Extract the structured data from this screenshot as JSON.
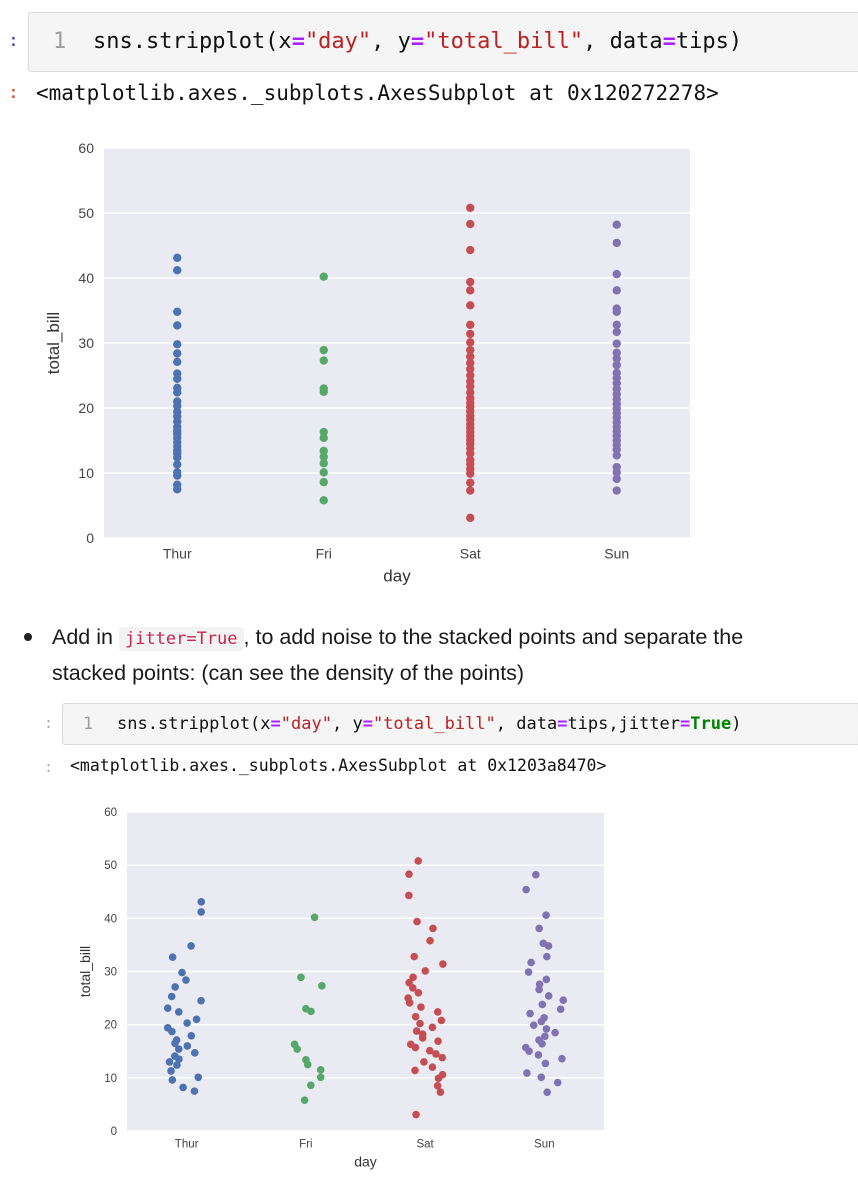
{
  "cell1": {
    "line_number": "1",
    "code": {
      "fn": "sns.stripplot(x",
      "eq1": "=",
      "s1": "\"day\"",
      "mid1": ", y",
      "eq2": "=",
      "s2": "\"total_bill\"",
      "mid2": ", data",
      "eq3": "=",
      "tail": "tips)"
    },
    "output": "<matplotlib.axes._subplots.AxesSubplot at 0x120272278>"
  },
  "cell2": {
    "line_number": "1",
    "code": {
      "fn": "sns.stripplot(x",
      "eq1": "=",
      "s1": "\"day\"",
      "mid1": ", y",
      "eq2": "=",
      "s2": "\"total_bill\"",
      "mid2": ", data",
      "eq3": "=",
      "mid3": "tips,jitter",
      "eq4": "=",
      "kw": "True",
      "tail": ")"
    },
    "output": "<matplotlib.axes._subplots.AxesSubplot at 0x1203a8470>"
  },
  "bullet": {
    "prefix": "Add in ",
    "code": "jitter=True",
    "line1_rest": ", to add noise to the stacked points and separate the",
    "line2": "stacked points: (can see the density of the points)"
  },
  "chart_data": [
    {
      "type": "scatter",
      "title": "",
      "xlabel": "day",
      "ylabel": "total_bill",
      "categories": [
        "Thur",
        "Fri",
        "Sat",
        "Sun"
      ],
      "ylim": [
        0,
        60
      ],
      "yticks": [
        0,
        10,
        20,
        30,
        40,
        50,
        60
      ],
      "grid": true,
      "jitter": false,
      "colors": [
        "#4c72b0",
        "#55a868",
        "#c44e52",
        "#8172b2"
      ],
      "series": [
        {
          "values": [
            7.5,
            8.2,
            9.6,
            10.1,
            11.3,
            12.4,
            13.0,
            13.5,
            14.1,
            14.7,
            15.4,
            16.0,
            16.5,
            17.1,
            17.9,
            18.7,
            19.4,
            20.3,
            21.0,
            22.4,
            23.1,
            24.5,
            25.3,
            27.1,
            28.4,
            29.8,
            32.7,
            34.8,
            41.2,
            43.1
          ]
        },
        {
          "values": [
            5.8,
            8.6,
            10.1,
            11.5,
            12.5,
            13.4,
            15.4,
            16.3,
            22.5,
            23.0,
            27.3,
            28.9,
            40.2
          ]
        },
        {
          "values": [
            3.1,
            7.3,
            8.5,
            9.9,
            10.6,
            11.4,
            12.0,
            13.0,
            13.8,
            14.5,
            15.1,
            15.7,
            16.3,
            16.9,
            17.5,
            18.2,
            18.8,
            19.5,
            20.2,
            20.8,
            21.5,
            22.4,
            23.3,
            24.1,
            25.0,
            26.0,
            26.9,
            27.9,
            28.9,
            30.1,
            31.4,
            32.8,
            35.8,
            38.1,
            39.4,
            44.3,
            48.3,
            50.8
          ]
        },
        {
          "values": [
            7.3,
            9.1,
            10.1,
            10.9,
            12.7,
            13.6,
            14.3,
            15.0,
            15.7,
            16.4,
            17.1,
            17.8,
            18.5,
            19.2,
            19.9,
            20.6,
            21.3,
            22.1,
            22.9,
            23.8,
            24.6,
            25.4,
            26.6,
            27.6,
            28.5,
            29.9,
            31.7,
            32.8,
            34.8,
            35.3,
            38.1,
            40.6,
            45.4,
            48.2
          ]
        }
      ]
    },
    {
      "type": "scatter",
      "title": "",
      "xlabel": "day",
      "ylabel": "total_bill",
      "categories": [
        "Thur",
        "Fri",
        "Sat",
        "Sun"
      ],
      "ylim": [
        0,
        60
      ],
      "yticks": [
        0,
        10,
        20,
        30,
        40,
        50,
        60
      ],
      "grid": true,
      "jitter": true,
      "colors": [
        "#4c72b0",
        "#55a868",
        "#c44e52",
        "#8172b2"
      ],
      "series": [
        {
          "values": [
            7.5,
            8.2,
            9.6,
            10.1,
            11.3,
            12.4,
            13.0,
            13.5,
            14.1,
            14.7,
            15.4,
            16.0,
            16.5,
            17.1,
            17.9,
            18.7,
            19.4,
            20.3,
            21.0,
            22.4,
            23.1,
            24.5,
            25.3,
            27.1,
            28.4,
            29.8,
            32.7,
            34.8,
            41.2,
            43.1
          ]
        },
        {
          "values": [
            5.8,
            8.6,
            10.1,
            11.5,
            12.5,
            13.4,
            15.4,
            16.3,
            22.5,
            23.0,
            27.3,
            28.9,
            40.2
          ]
        },
        {
          "values": [
            3.1,
            7.3,
            8.5,
            9.9,
            10.6,
            11.4,
            12.0,
            13.0,
            13.8,
            14.5,
            15.1,
            15.7,
            16.3,
            16.9,
            17.5,
            18.2,
            18.8,
            19.5,
            20.2,
            20.8,
            21.5,
            22.4,
            23.3,
            24.1,
            25.0,
            26.0,
            26.9,
            27.9,
            28.9,
            30.1,
            31.4,
            32.8,
            35.8,
            38.1,
            39.4,
            44.3,
            48.3,
            50.8
          ]
        },
        {
          "values": [
            7.3,
            9.1,
            10.1,
            10.9,
            12.7,
            13.6,
            14.3,
            15.0,
            15.7,
            16.4,
            17.1,
            17.8,
            18.5,
            19.2,
            19.9,
            20.6,
            21.3,
            22.1,
            22.9,
            23.8,
            24.6,
            25.4,
            26.6,
            27.6,
            28.5,
            29.9,
            31.7,
            32.8,
            34.8,
            35.3,
            38.1,
            40.6,
            45.4,
            48.2
          ]
        }
      ]
    }
  ]
}
